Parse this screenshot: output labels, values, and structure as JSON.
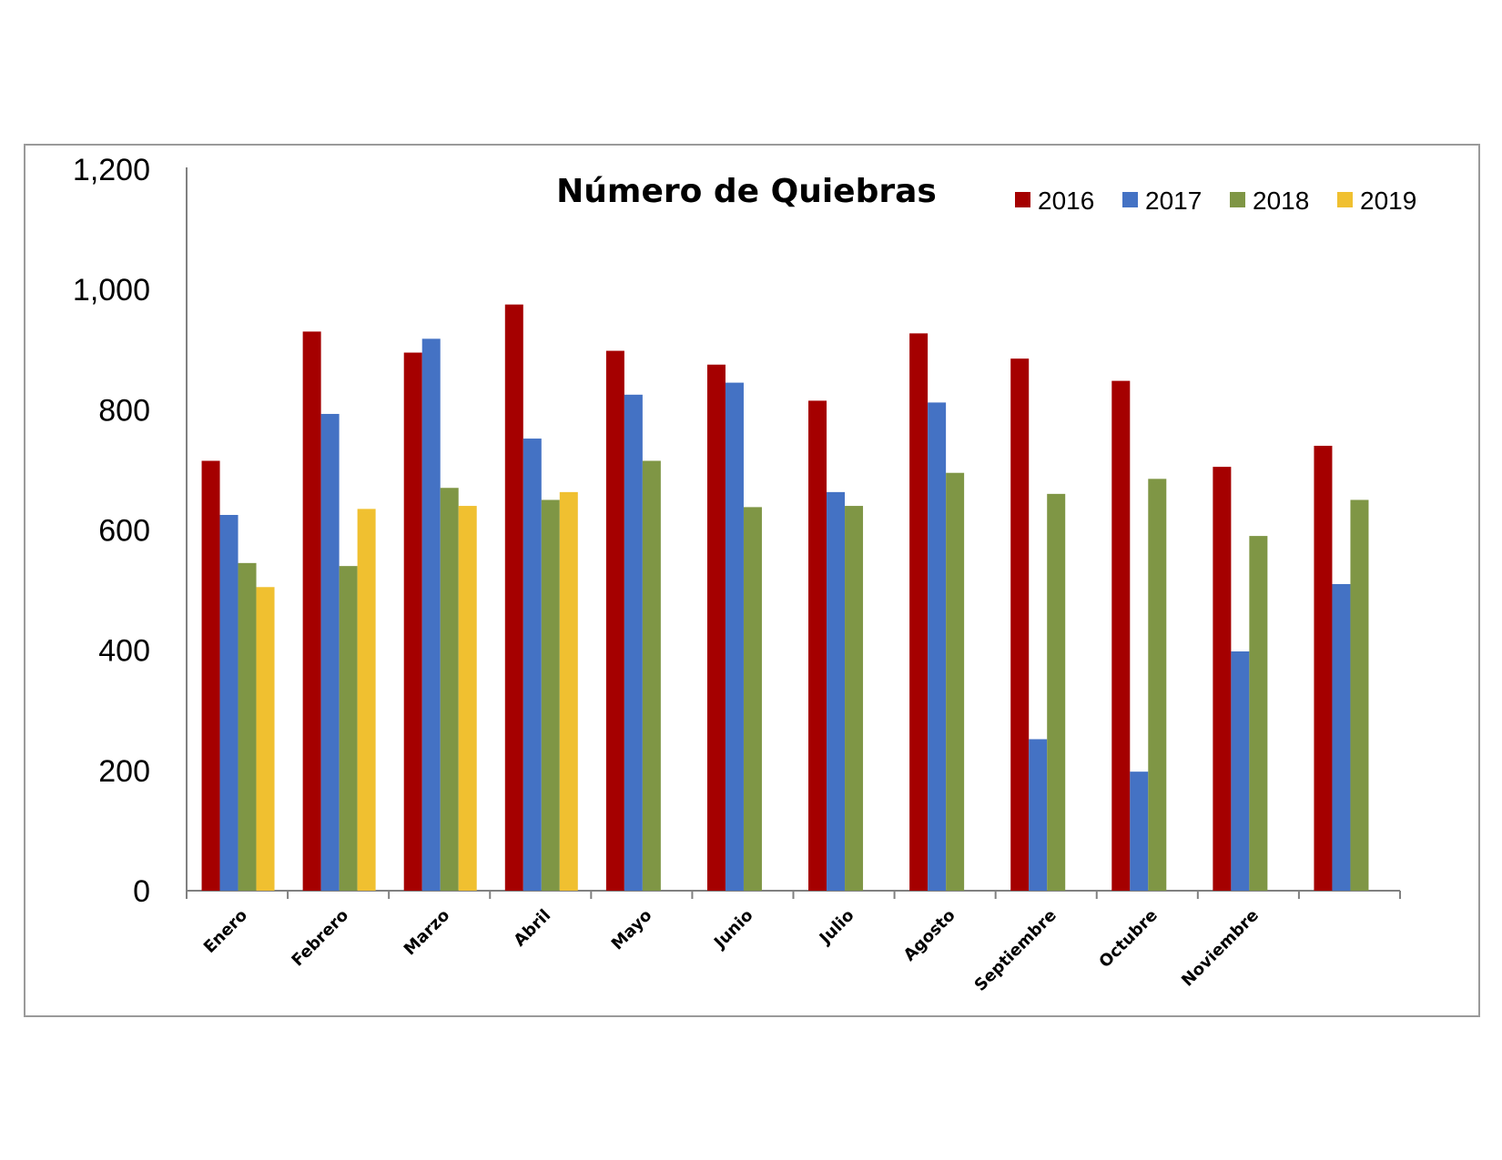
{
  "chart_data": {
    "type": "bar",
    "title": "Número de Quiebras",
    "xlabel": "",
    "ylabel": "",
    "ylim": [
      0,
      1200
    ],
    "yticks": [
      "0",
      "200",
      "400",
      "600",
      "800",
      "1,000",
      "1,200"
    ],
    "legend_position": "top-right",
    "grid": false,
    "categories": [
      "Enero",
      "Febrero",
      "Marzo",
      "Abril",
      "Mayo",
      "Junio",
      "Julio",
      "Agosto",
      "Septiembre",
      "Octubre",
      "Noviembre",
      ""
    ],
    "series": [
      {
        "name": "2016",
        "color": "#a50000",
        "values": [
          715,
          930,
          895,
          975,
          898,
          875,
          815,
          927,
          885,
          848,
          705,
          740
        ]
      },
      {
        "name": "2017",
        "color": "#4472c4",
        "values": [
          625,
          793,
          918,
          752,
          825,
          845,
          663,
          812,
          252,
          198,
          398,
          510
        ]
      },
      {
        "name": "2018",
        "color": "#7f9645",
        "values": [
          545,
          540,
          670,
          650,
          715,
          638,
          640,
          695,
          660,
          685,
          590,
          650
        ]
      },
      {
        "name": "2019",
        "color": "#f0c030",
        "values": [
          505,
          635,
          640,
          663,
          null,
          null,
          null,
          null,
          null,
          null,
          null,
          null
        ]
      }
    ]
  }
}
